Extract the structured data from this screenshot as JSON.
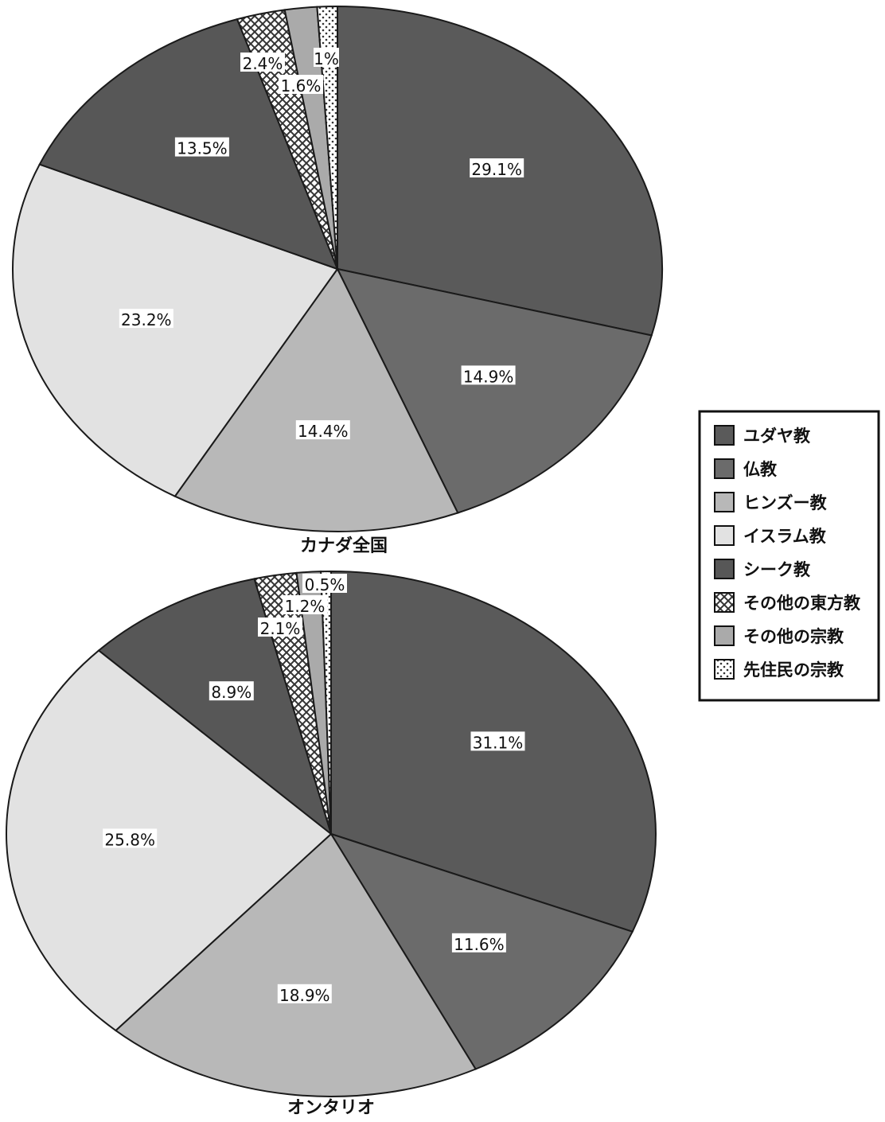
{
  "chart_data": [
    {
      "type": "pie",
      "title": "カナダ全国",
      "categories": [
        "ユダヤ教",
        "仏教",
        "ヒンズー教",
        "イスラム教",
        "シーク教",
        "その他の東方教",
        "その他の宗教",
        "先住民の宗教"
      ],
      "values": [
        29.1,
        14.9,
        14.4,
        23.2,
        13.5,
        2.4,
        1.6,
        1.0
      ],
      "data_labels": [
        "29.1%",
        "14.9%",
        "14.4%",
        "23.2%",
        "13.5%",
        "2.4%",
        "1.6%",
        "1%"
      ]
    },
    {
      "type": "pie",
      "title": "オンタリオ",
      "categories": [
        "ユダヤ教",
        "仏教",
        "ヒンズー教",
        "イスラム教",
        "シーク教",
        "その他の東方教",
        "その他の宗教",
        "先住民の宗教"
      ],
      "values": [
        31.1,
        11.6,
        18.9,
        25.8,
        8.9,
        2.1,
        1.2,
        0.5
      ],
      "data_labels": [
        "31.1%",
        "11.6%",
        "18.9%",
        "25.8%",
        "8.9%",
        "2.1%",
        "1.2%",
        "0.5%"
      ]
    }
  ],
  "legend": {
    "placement": "right",
    "items": [
      {
        "label": "ユダヤ教",
        "color": "#5a5a5a",
        "pattern": "solid"
      },
      {
        "label": "仏教",
        "color": "#6b6b6b",
        "pattern": "solid"
      },
      {
        "label": "ヒンズー教",
        "color": "#b8b8b8",
        "pattern": "solid"
      },
      {
        "label": "イスラム教",
        "color": "#e2e2e2",
        "pattern": "solid"
      },
      {
        "label": "シーク教",
        "color": "#575757",
        "pattern": "solid"
      },
      {
        "label": "その他の東方教",
        "color": "#777777",
        "pattern": "crosshatch"
      },
      {
        "label": "その他の宗教",
        "color": "#aaaaaa",
        "pattern": "solid"
      },
      {
        "label": "先住民の宗教",
        "color": "#ffffff",
        "pattern": "dots"
      }
    ]
  }
}
